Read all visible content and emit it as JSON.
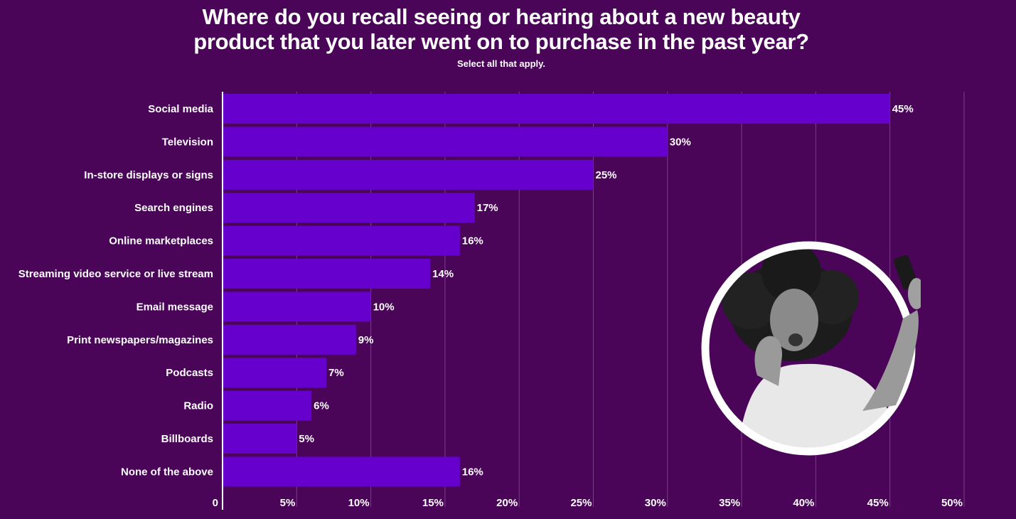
{
  "title_line1": "Where do you recall seeing or hearing about a new beauty",
  "title_line2": "product that you later went on to purchase in the past year?",
  "subtitle": "Select all that apply.",
  "colors": {
    "background": "#4a0558",
    "bar": "#6600cc",
    "grid": "#7a3f85",
    "text": "#ffffff"
  },
  "chart_data": {
    "type": "bar",
    "orientation": "horizontal",
    "title": "Where do you recall seeing or hearing about a new beauty product that you later went on to purchase in the past year?",
    "subtitle": "Select all that apply.",
    "categories": [
      "Social media",
      "Television",
      "In-store displays or signs",
      "Search engines",
      "Online marketplaces",
      "Streaming video service or live stream",
      "Email message",
      "Print newspapers/magazines",
      "Podcasts",
      "Radio",
      "Billboards",
      "None of the above"
    ],
    "values": [
      45,
      30,
      25,
      17,
      16,
      14,
      10,
      9,
      7,
      6,
      5,
      16
    ],
    "value_labels": [
      "45%",
      "30%",
      "25%",
      "17%",
      "16%",
      "14%",
      "10%",
      "9%",
      "7%",
      "6%",
      "5%",
      "16%"
    ],
    "xlim": [
      0,
      50
    ],
    "x_ticks": [
      0,
      5,
      10,
      15,
      20,
      25,
      30,
      35,
      40,
      45,
      50
    ],
    "x_tick_labels": [
      "0",
      "5%",
      "10%",
      "15%",
      "20%",
      "25%",
      "30%",
      "35%",
      "40%",
      "45%",
      "50%"
    ],
    "grid": true
  }
}
